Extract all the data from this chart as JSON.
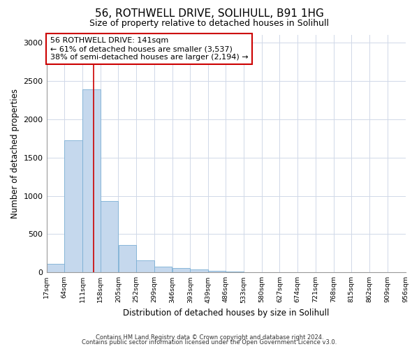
{
  "title1": "56, ROTHWELL DRIVE, SOLIHULL, B91 1HG",
  "title2": "Size of property relative to detached houses in Solihull",
  "xlabel": "Distribution of detached houses by size in Solihull",
  "ylabel": "Number of detached properties",
  "annotation_line1": "56 ROTHWELL DRIVE: 141sqm",
  "annotation_line2": "← 61% of detached houses are smaller (3,537)",
  "annotation_line3": "38% of semi-detached houses are larger (2,194) →",
  "property_size": 141,
  "bin_edges": [
    17,
    64,
    111,
    158,
    205,
    252,
    299,
    346,
    393,
    439,
    486,
    533,
    580,
    627,
    674,
    721,
    768,
    815,
    862,
    909,
    956
  ],
  "bar_heights": [
    115,
    1720,
    2390,
    930,
    355,
    155,
    80,
    55,
    40,
    25,
    10,
    5,
    3,
    2,
    1,
    1,
    0,
    0,
    0,
    0
  ],
  "bar_color": "#c5d8ed",
  "bar_edge_color": "#7bafd4",
  "grid_color": "#d0d8e8",
  "vline_color": "#cc0000",
  "annotation_box_color": "#cc0000",
  "background_color": "#ffffff",
  "ylim": [
    0,
    3100
  ],
  "yticks": [
    0,
    500,
    1000,
    1500,
    2000,
    2500,
    3000
  ],
  "footer1": "Contains HM Land Registry data © Crown copyright and database right 2024.",
  "footer2": "Contains public sector information licensed under the Open Government Licence v3.0."
}
